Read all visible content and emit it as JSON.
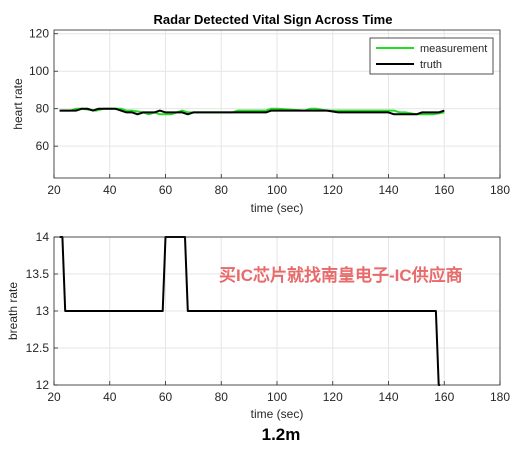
{
  "chart_data": [
    {
      "type": "line",
      "title": "Radar Detected Vital Sign Across Time",
      "xlabel": "time (sec)",
      "ylabel": "heart rate",
      "xlim": [
        20,
        180
      ],
      "ylim": [
        43,
        122
      ],
      "xticks": [
        20,
        40,
        60,
        80,
        100,
        120,
        140,
        160,
        180
      ],
      "yticks": [
        60,
        80,
        100,
        120
      ],
      "grid": true,
      "legend": "top-right",
      "series": [
        {
          "name": "measurement",
          "color": "#22dd22",
          "x": [
            22,
            26,
            28,
            30,
            35,
            38,
            40,
            42,
            44,
            46,
            48,
            52,
            54,
            56,
            58,
            60,
            62,
            64,
            66,
            68,
            70,
            84,
            86,
            94,
            96,
            98,
            100,
            110,
            112,
            114,
            118,
            130,
            132,
            142,
            144,
            146,
            150,
            156,
            160
          ],
          "y": [
            79,
            79,
            80,
            80,
            79,
            80,
            80,
            80,
            80,
            79,
            79,
            78,
            77,
            78,
            77,
            77,
            77,
            78,
            79,
            78,
            78,
            78,
            79,
            79,
            79,
            80,
            80,
            79,
            80,
            80,
            79,
            79,
            79,
            79,
            78,
            78,
            77,
            77,
            78
          ]
        },
        {
          "name": "truth",
          "color": "#000000",
          "x": [
            22,
            24,
            26,
            28,
            30,
            32,
            34,
            36,
            38,
            40,
            42,
            44,
            46,
            48,
            50,
            52,
            54,
            56,
            58,
            60,
            62,
            64,
            66,
            68,
            70,
            80,
            90,
            96,
            98,
            100,
            102,
            104,
            110,
            116,
            118,
            122,
            126,
            130,
            134,
            138,
            140,
            142,
            144,
            146,
            150,
            152,
            156,
            158,
            160
          ],
          "y": [
            79,
            79,
            79,
            79,
            80,
            80,
            79,
            80,
            80,
            80,
            80,
            79,
            78,
            78,
            77,
            78,
            78,
            78,
            79,
            78,
            78,
            78,
            78,
            77,
            78,
            78,
            78,
            78,
            79,
            79,
            79,
            79,
            79,
            79,
            79,
            78,
            78,
            78,
            78,
            78,
            78,
            77,
            77,
            77,
            77,
            78,
            78,
            78,
            79
          ]
        }
      ]
    },
    {
      "type": "line",
      "title": "",
      "xlabel": "time (sec)",
      "ylabel": "breath rate",
      "xlim": [
        20,
        180
      ],
      "ylim": [
        12,
        14
      ],
      "xticks": [
        20,
        40,
        60,
        80,
        100,
        120,
        140,
        160,
        180
      ],
      "yticks": [
        12,
        12.5,
        13,
        13.5,
        14
      ],
      "ytick_labels": [
        "12",
        "12.5",
        "13",
        "13.5",
        "14"
      ],
      "grid": true,
      "series": [
        {
          "color": "#000000",
          "x": [
            22,
            23,
            24,
            58,
            59,
            60,
            66,
            67,
            68,
            157,
            158,
            158.5
          ],
          "y": [
            14,
            14,
            13,
            13,
            13,
            14,
            14,
            14,
            13,
            13,
            12,
            12
          ]
        }
      ]
    }
  ],
  "watermark": "买IC芯片就找南皇电子-IC供应商",
  "caption": "1.2m"
}
